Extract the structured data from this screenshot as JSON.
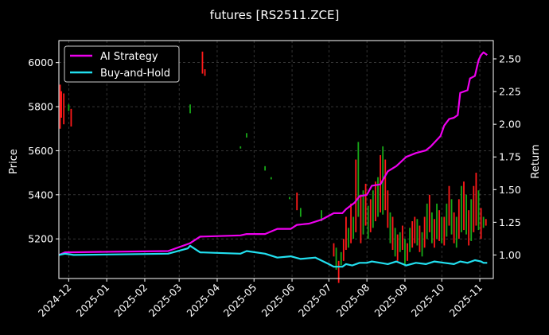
{
  "chart_data": {
    "type": "line",
    "title": "futures [RS2511.ZCE]",
    "ylabel_left": "Price",
    "ylabel_right": "Return",
    "left_yticks": [
      5200,
      5400,
      5600,
      5800,
      6000
    ],
    "right_yticks": [
      "1.00",
      "1.25",
      "1.50",
      "1.75",
      "2.00",
      "2.25",
      "2.50"
    ],
    "xticks": [
      "2024-12",
      "2025-01",
      "2025-02",
      "2025-03",
      "2025-04",
      "2025-05",
      "2025-06",
      "2025-07",
      "2025-08",
      "2025-09",
      "2025-10",
      "2025-11"
    ],
    "xlim": [
      "2024-11-23",
      "2025-11-12"
    ],
    "ylim_left": [
      5020,
      6100
    ],
    "ylim_right": [
      0.82,
      2.64
    ],
    "grid": true,
    "legend_position": "top-left",
    "series": [
      {
        "name": "AI Strategy",
        "color": "#ee00ee",
        "axis": "right",
        "points": [
          [
            "2024-11-23",
            1.0
          ],
          [
            "2024-11-28",
            1.02
          ],
          [
            "2025-02-20",
            1.03
          ],
          [
            "2025-03-10",
            1.09
          ],
          [
            "2025-03-18",
            1.14
          ],
          [
            "2025-04-20",
            1.15
          ],
          [
            "2025-04-25",
            1.16
          ],
          [
            "2025-05-10",
            1.16
          ],
          [
            "2025-05-20",
            1.2
          ],
          [
            "2025-05-31",
            1.2
          ],
          [
            "2025-06-05",
            1.23
          ],
          [
            "2025-06-15",
            1.24
          ],
          [
            "2025-06-25",
            1.27
          ],
          [
            "2025-07-05",
            1.32
          ],
          [
            "2025-07-12",
            1.32
          ],
          [
            "2025-07-15",
            1.35
          ],
          [
            "2025-07-22",
            1.4
          ],
          [
            "2025-07-26",
            1.45
          ],
          [
            "2025-08-01",
            1.46
          ],
          [
            "2025-08-05",
            1.53
          ],
          [
            "2025-08-12",
            1.54
          ],
          [
            "2025-08-18",
            1.64
          ],
          [
            "2025-08-25",
            1.68
          ],
          [
            "2025-09-02",
            1.75
          ],
          [
            "2025-09-10",
            1.78
          ],
          [
            "2025-09-18",
            1.8
          ],
          [
            "2025-09-22",
            1.83
          ],
          [
            "2025-09-26",
            1.87
          ],
          [
            "2025-09-30",
            1.91
          ],
          [
            "2025-10-03",
            1.99
          ],
          [
            "2025-10-07",
            2.04
          ],
          [
            "2025-10-11",
            2.05
          ],
          [
            "2025-10-14",
            2.07
          ],
          [
            "2025-10-16",
            2.24
          ],
          [
            "2025-10-22",
            2.26
          ],
          [
            "2025-10-24",
            2.35
          ],
          [
            "2025-10-28",
            2.37
          ],
          [
            "2025-10-31",
            2.49
          ],
          [
            "2025-11-02",
            2.53
          ],
          [
            "2025-11-04",
            2.55
          ],
          [
            "2025-11-07",
            2.53
          ]
        ]
      },
      {
        "name": "Buy-and-Hold",
        "color": "#22e0f0",
        "axis": "right",
        "points": [
          [
            "2024-11-23",
            1.0
          ],
          [
            "2024-11-28",
            1.01
          ],
          [
            "2024-12-05",
            1.0
          ],
          [
            "2025-02-20",
            1.01
          ],
          [
            "2025-03-08",
            1.05
          ],
          [
            "2025-03-10",
            1.07
          ],
          [
            "2025-03-18",
            1.02
          ],
          [
            "2025-04-20",
            1.01
          ],
          [
            "2025-04-25",
            1.03
          ],
          [
            "2025-05-10",
            1.01
          ],
          [
            "2025-05-20",
            0.98
          ],
          [
            "2025-05-31",
            0.99
          ],
          [
            "2025-06-08",
            0.97
          ],
          [
            "2025-06-20",
            0.98
          ],
          [
            "2025-07-01",
            0.93
          ],
          [
            "2025-07-05",
            0.91
          ],
          [
            "2025-07-12",
            0.91
          ],
          [
            "2025-07-15",
            0.93
          ],
          [
            "2025-07-20",
            0.92
          ],
          [
            "2025-07-26",
            0.94
          ],
          [
            "2025-08-01",
            0.94
          ],
          [
            "2025-08-05",
            0.95
          ],
          [
            "2025-08-12",
            0.94
          ],
          [
            "2025-08-18",
            0.93
          ],
          [
            "2025-08-25",
            0.95
          ],
          [
            "2025-09-02",
            0.92
          ],
          [
            "2025-09-10",
            0.94
          ],
          [
            "2025-09-18",
            0.93
          ],
          [
            "2025-09-25",
            0.95
          ],
          [
            "2025-10-03",
            0.94
          ],
          [
            "2025-10-11",
            0.93
          ],
          [
            "2025-10-16",
            0.95
          ],
          [
            "2025-10-22",
            0.94
          ],
          [
            "2025-10-28",
            0.96
          ],
          [
            "2025-11-02",
            0.95
          ],
          [
            "2025-11-04",
            0.94
          ],
          [
            "2025-11-07",
            0.94
          ]
        ]
      }
    ],
    "candles": [
      [
        "2024-11-24",
        5700,
        5900,
        "up"
      ],
      [
        "2024-11-25",
        5750,
        5870,
        "up"
      ],
      [
        "2024-11-27",
        5720,
        5860,
        "up"
      ],
      [
        "2024-12-01",
        5780,
        5810,
        "down"
      ],
      [
        "2024-12-03",
        5710,
        5790,
        "up"
      ],
      [
        "2025-03-10",
        5770,
        5810,
        "down"
      ],
      [
        "2025-03-20",
        5950,
        6050,
        "up"
      ],
      [
        "2025-03-22",
        5940,
        5970,
        "up"
      ],
      [
        "2025-04-20",
        5610,
        5620,
        "down"
      ],
      [
        "2025-04-25",
        5660,
        5680,
        "down"
      ],
      [
        "2025-05-10",
        5510,
        5530,
        "down"
      ],
      [
        "2025-05-15",
        5470,
        5480,
        "down"
      ],
      [
        "2025-05-30",
        5380,
        5390,
        "down"
      ],
      [
        "2025-06-05",
        5330,
        5410,
        "up"
      ],
      [
        "2025-06-08",
        5300,
        5340,
        "down"
      ],
      [
        "2025-06-25",
        5280,
        5330,
        "down"
      ],
      [
        "2025-07-05",
        5120,
        5180,
        "up"
      ],
      [
        "2025-07-07",
        5060,
        5160,
        "down"
      ],
      [
        "2025-07-09",
        5000,
        5100,
        "up"
      ],
      [
        "2025-07-11",
        5080,
        5140,
        "down"
      ],
      [
        "2025-07-13",
        5100,
        5200,
        "up"
      ],
      [
        "2025-07-15",
        5150,
        5300,
        "up"
      ],
      [
        "2025-07-17",
        5160,
        5250,
        "down"
      ],
      [
        "2025-07-19",
        5180,
        5360,
        "up"
      ],
      [
        "2025-07-21",
        5200,
        5300,
        "down"
      ],
      [
        "2025-07-23",
        5230,
        5560,
        "up"
      ],
      [
        "2025-07-25",
        5300,
        5640,
        "down"
      ],
      [
        "2025-07-27",
        5180,
        5400,
        "up"
      ],
      [
        "2025-07-29",
        5220,
        5420,
        "down"
      ],
      [
        "2025-07-31",
        5260,
        5450,
        "up"
      ],
      [
        "2025-08-02",
        5200,
        5350,
        "down"
      ],
      [
        "2025-08-04",
        5230,
        5380,
        "up"
      ],
      [
        "2025-08-06",
        5250,
        5420,
        "down"
      ],
      [
        "2025-08-08",
        5280,
        5460,
        "up"
      ],
      [
        "2025-08-10",
        5300,
        5480,
        "down"
      ],
      [
        "2025-08-12",
        5320,
        5580,
        "up"
      ],
      [
        "2025-08-14",
        5310,
        5620,
        "down"
      ],
      [
        "2025-08-16",
        5330,
        5560,
        "up"
      ],
      [
        "2025-08-18",
        5250,
        5420,
        "up"
      ],
      [
        "2025-08-20",
        5180,
        5320,
        "down"
      ],
      [
        "2025-08-22",
        5150,
        5300,
        "up"
      ],
      [
        "2025-08-24",
        5120,
        5250,
        "down"
      ],
      [
        "2025-08-26",
        5100,
        5220,
        "up"
      ],
      [
        "2025-08-28",
        5140,
        5230,
        "down"
      ],
      [
        "2025-08-30",
        5150,
        5260,
        "up"
      ],
      [
        "2025-09-01",
        5080,
        5200,
        "down"
      ],
      [
        "2025-09-03",
        5100,
        5180,
        "up"
      ],
      [
        "2025-09-05",
        5140,
        5250,
        "down"
      ],
      [
        "2025-09-07",
        5160,
        5280,
        "up"
      ],
      [
        "2025-09-09",
        5180,
        5300,
        "up"
      ],
      [
        "2025-09-11",
        5170,
        5290,
        "down"
      ],
      [
        "2025-09-13",
        5140,
        5260,
        "up"
      ],
      [
        "2025-09-15",
        5120,
        5230,
        "down"
      ],
      [
        "2025-09-17",
        5160,
        5300,
        "up"
      ],
      [
        "2025-09-19",
        5200,
        5360,
        "down"
      ],
      [
        "2025-09-21",
        5230,
        5400,
        "up"
      ],
      [
        "2025-09-23",
        5180,
        5320,
        "down"
      ],
      [
        "2025-09-25",
        5160,
        5290,
        "up"
      ],
      [
        "2025-09-27",
        5200,
        5360,
        "down"
      ],
      [
        "2025-09-29",
        5190,
        5330,
        "up"
      ],
      [
        "2025-10-01",
        5180,
        5300,
        "down"
      ],
      [
        "2025-10-03",
        5170,
        5300,
        "up"
      ],
      [
        "2025-10-05",
        5210,
        5360,
        "down"
      ],
      [
        "2025-10-07",
        5260,
        5440,
        "up"
      ],
      [
        "2025-10-09",
        5220,
        5380,
        "down"
      ],
      [
        "2025-10-11",
        5180,
        5320,
        "up"
      ],
      [
        "2025-10-13",
        5160,
        5300,
        "down"
      ],
      [
        "2025-10-15",
        5200,
        5380,
        "up"
      ],
      [
        "2025-10-17",
        5230,
        5440,
        "down"
      ],
      [
        "2025-10-19",
        5240,
        5460,
        "up"
      ],
      [
        "2025-10-21",
        5220,
        5400,
        "down"
      ],
      [
        "2025-10-23",
        5170,
        5330,
        "up"
      ],
      [
        "2025-10-25",
        5190,
        5380,
        "down"
      ],
      [
        "2025-10-27",
        5230,
        5440,
        "up"
      ],
      [
        "2025-10-29",
        5260,
        5500,
        "up"
      ],
      [
        "2025-10-31",
        5240,
        5420,
        "down"
      ],
      [
        "2025-11-02",
        5200,
        5340,
        "up"
      ],
      [
        "2025-11-04",
        5250,
        5300,
        "down"
      ],
      [
        "2025-11-06",
        5260,
        5290,
        "up"
      ]
    ]
  }
}
